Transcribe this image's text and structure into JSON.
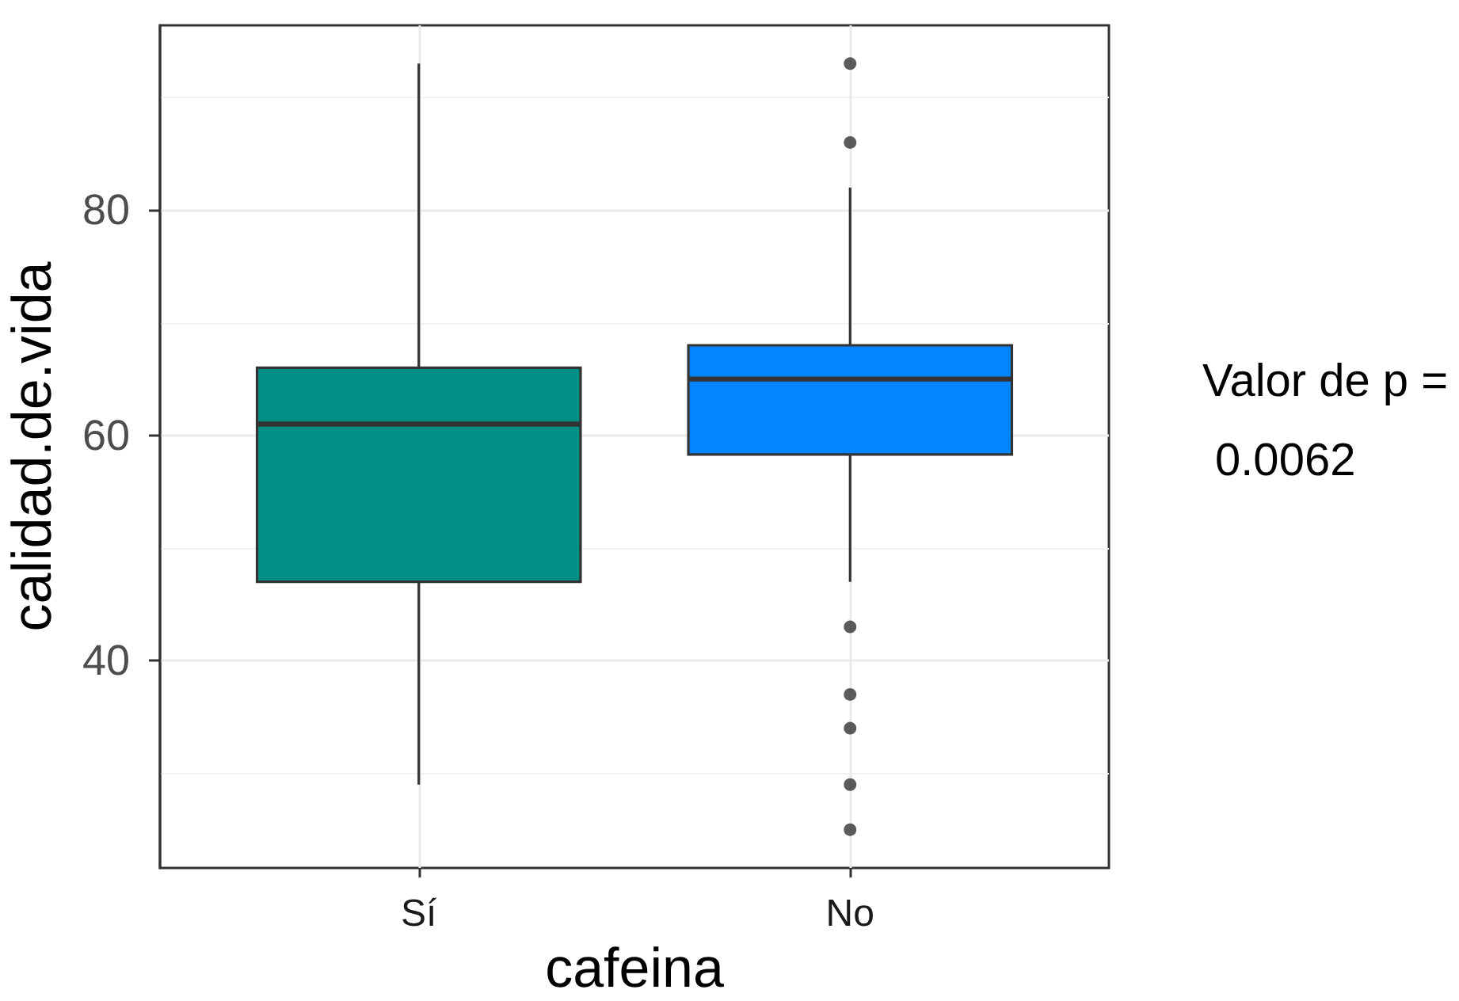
{
  "chart_data": {
    "type": "box",
    "xlabel": "cafeina",
    "ylabel": "calidad.de.vida",
    "categories": [
      "Sí",
      "No"
    ],
    "boxes": [
      {
        "low": 29,
        "q1": 47,
        "median": 61,
        "q3": 66,
        "high": 93
      },
      {
        "low": 47,
        "q1": 58.3,
        "median": 65,
        "q3": 68,
        "high": 82,
        "outliers": [
          93,
          86,
          43,
          37,
          34,
          29,
          25
        ]
      }
    ],
    "colors": [
      "#008f87",
      "#0385ff"
    ],
    "ylim": [
      21.6,
      96.4
    ],
    "yticks": [
      40,
      60,
      80
    ],
    "grid": true,
    "annotations": [
      "Valor de p =",
      "0.0062"
    ]
  }
}
